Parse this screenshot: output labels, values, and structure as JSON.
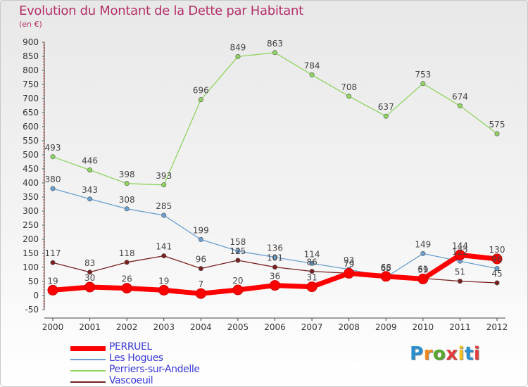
{
  "title": "Evolution du Montant de la Dette par Habitant",
  "unit": "(en €)",
  "logo": "Proxiti",
  "chart_data": {
    "type": "line",
    "x": [
      "2000",
      "2001",
      "2002",
      "2003",
      "2004",
      "2005",
      "2006",
      "2007",
      "2008",
      "2009",
      "2010",
      "2011",
      "2012"
    ],
    "ylim": [
      -50,
      900
    ],
    "yticks": [
      -50,
      0,
      50,
      100,
      150,
      200,
      250,
      300,
      350,
      400,
      450,
      500,
      550,
      600,
      650,
      700,
      750,
      800,
      850,
      900
    ],
    "grid": false,
    "legend_position": "bottom-left",
    "series": [
      {
        "name": "PERRUEL",
        "color": "#ff0000",
        "values": [
          19,
          30,
          26,
          19,
          7,
          20,
          36,
          31,
          79,
          68,
          59,
          144,
          130
        ]
      },
      {
        "name": "Les Hogues",
        "color": "#6a9fd0",
        "values": [
          380,
          343,
          308,
          285,
          199,
          158,
          136,
          114,
          93,
          65,
          149,
          122,
          96
        ]
      },
      {
        "name": "Perriers-sur-Andelle",
        "color": "#8fd460",
        "values": [
          493,
          446,
          398,
          393,
          696,
          849,
          863,
          784,
          708,
          637,
          753,
          674,
          575
        ]
      },
      {
        "name": "Vascoeuil",
        "color": "#7a2020",
        "values": [
          117,
          83,
          118,
          141,
          96,
          125,
          101,
          86,
          79,
          65,
          61,
          51,
          45
        ]
      }
    ]
  }
}
